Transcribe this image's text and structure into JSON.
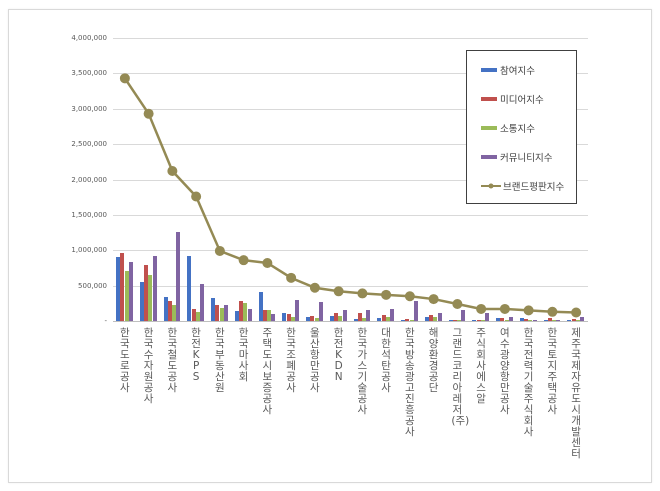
{
  "chart_data": {
    "type": "bar+line",
    "title": "",
    "xlabel": "",
    "ylabel": "",
    "ylim": [
      0,
      4000000
    ],
    "yticks": [
      "-",
      "500,000",
      "1,000,000",
      "1,500,000",
      "2,000,000",
      "2,500,000",
      "3,000,000",
      "3,500,000",
      "4,000,000"
    ],
    "grid": true,
    "legend_position": "right-inside",
    "categories": [
      "한국도로공사",
      "한국수자원공사",
      "한국철도공사",
      "한전KPS",
      "한국부동산원",
      "한국마사회",
      "주택도시보증공사",
      "한국조폐공사",
      "울산항만공사",
      "한전KDN",
      "한국가스기술공사",
      "대한석탄공사",
      "한국방송광고진흥공사",
      "해양환경공단",
      "그랜드코리아레저(주)",
      "주식회사에스알",
      "여수광양항만공사",
      "한국전력기술주식회사",
      "한국토지주택공사",
      "제주국제자유도시개발센터"
    ],
    "series": [
      {
        "name": "참여지수",
        "type": "bar",
        "color": "#4472c4",
        "values": [
          900000,
          550000,
          340000,
          920000,
          320000,
          140000,
          410000,
          110000,
          50000,
          70000,
          30000,
          40000,
          20000,
          60000,
          10000,
          20000,
          40000,
          40000,
          10000,
          10000
        ]
      },
      {
        "name": "미디어지수",
        "type": "bar",
        "color": "#c0504d",
        "values": [
          960000,
          790000,
          280000,
          170000,
          230000,
          280000,
          150000,
          100000,
          70000,
          110000,
          120000,
          90000,
          30000,
          80000,
          20000,
          20000,
          40000,
          30000,
          40000,
          30000
        ]
      },
      {
        "name": "소통지수",
        "type": "bar",
        "color": "#9bbb59",
        "values": [
          710000,
          650000,
          230000,
          130000,
          180000,
          250000,
          150000,
          60000,
          40000,
          70000,
          40000,
          50000,
          20000,
          50000,
          10000,
          20000,
          20000,
          10000,
          10000,
          10000
        ]
      },
      {
        "name": "커뮤니티지수",
        "type": "bar",
        "color": "#8064a2",
        "values": [
          830000,
          920000,
          1260000,
          520000,
          230000,
          170000,
          100000,
          300000,
          270000,
          160000,
          150000,
          170000,
          280000,
          120000,
          150000,
          120000,
          50000,
          10000,
          10000,
          50000
        ]
      },
      {
        "name": "브랜드평판지수",
        "type": "line",
        "color": "#948a54",
        "values": [
          3430000,
          2930000,
          2120000,
          1760000,
          990000,
          860000,
          820000,
          610000,
          470000,
          420000,
          390000,
          370000,
          350000,
          310000,
          240000,
          170000,
          170000,
          150000,
          130000,
          120000
        ]
      }
    ]
  },
  "legend": {
    "items": [
      "참여지수",
      "미디어지수",
      "소통지수",
      "커뮤니티지수",
      "브랜드평판지수"
    ]
  }
}
